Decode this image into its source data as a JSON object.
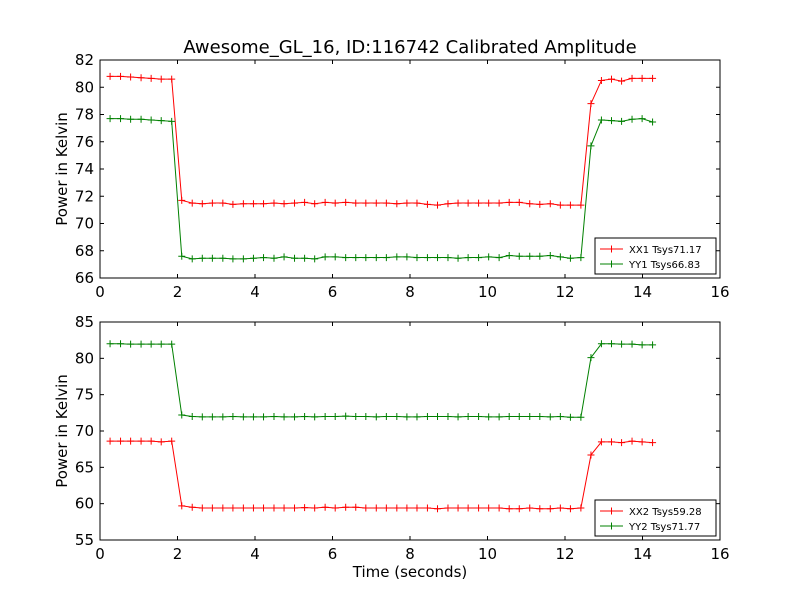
{
  "figure_title": "Awesome_GL_16, ID:116742 Calibrated Amplitude",
  "colors": {
    "xx": "#ff0000",
    "yy": "#008000",
    "frame": "#000000",
    "background": "#ffffff"
  },
  "chart_data": [
    {
      "type": "line",
      "title": "Awesome_GL_16, ID:116742 Calibrated Amplitude",
      "xlabel": "",
      "ylabel": "Power in Kelvin",
      "xlim": [
        0,
        16
      ],
      "ylim": [
        66,
        82
      ],
      "xticks": [
        0,
        2,
        4,
        6,
        8,
        10,
        12,
        14,
        16
      ],
      "yticks": [
        66,
        68,
        70,
        72,
        74,
        76,
        78,
        80,
        82
      ],
      "grid": false,
      "legend_position": "lower-right",
      "marker": "+",
      "x": [
        0.26,
        0.53,
        0.79,
        1.06,
        1.32,
        1.58,
        1.85,
        2.11,
        2.38,
        2.64,
        2.9,
        3.17,
        3.43,
        3.7,
        3.96,
        4.22,
        4.49,
        4.75,
        5.02,
        5.28,
        5.54,
        5.81,
        6.07,
        6.34,
        6.6,
        6.86,
        7.13,
        7.39,
        7.66,
        7.92,
        8.18,
        8.45,
        8.71,
        8.98,
        9.24,
        9.5,
        9.77,
        10.03,
        10.3,
        10.56,
        10.82,
        11.09,
        11.35,
        11.62,
        11.88,
        12.14,
        12.41,
        12.67,
        12.94,
        13.2,
        13.46,
        13.73,
        13.99,
        14.26
      ],
      "series": [
        {
          "name": "XX1 Tsys71.17",
          "color": "#ff0000",
          "values": [
            80.8,
            80.8,
            80.75,
            80.7,
            80.65,
            80.6,
            80.6,
            71.7,
            71.5,
            71.45,
            71.5,
            71.5,
            71.4,
            71.45,
            71.45,
            71.45,
            71.5,
            71.45,
            71.5,
            71.55,
            71.45,
            71.55,
            71.5,
            71.55,
            71.5,
            71.5,
            71.5,
            71.5,
            71.45,
            71.5,
            71.5,
            71.4,
            71.35,
            71.45,
            71.5,
            71.5,
            71.5,
            71.5,
            71.5,
            71.55,
            71.55,
            71.45,
            71.4,
            71.45,
            71.35,
            71.35,
            71.35,
            78.8,
            80.5,
            80.6,
            80.45,
            80.65,
            80.65,
            80.65
          ]
        },
        {
          "name": "YY1 Tsys66.83",
          "color": "#008000",
          "values": [
            77.7,
            77.7,
            77.65,
            77.65,
            77.6,
            77.55,
            77.5,
            67.6,
            67.4,
            67.45,
            67.45,
            67.45,
            67.4,
            67.4,
            67.45,
            67.5,
            67.45,
            67.55,
            67.45,
            67.45,
            67.4,
            67.55,
            67.55,
            67.5,
            67.5,
            67.5,
            67.5,
            67.5,
            67.55,
            67.55,
            67.5,
            67.5,
            67.5,
            67.5,
            67.45,
            67.5,
            67.5,
            67.55,
            67.5,
            67.65,
            67.6,
            67.6,
            67.6,
            67.65,
            67.55,
            67.45,
            67.5,
            75.7,
            77.6,
            77.55,
            77.5,
            77.65,
            77.7,
            77.45
          ]
        }
      ]
    },
    {
      "type": "line",
      "title": "",
      "xlabel": "Time (seconds)",
      "ylabel": "Power in Kelvin",
      "xlim": [
        0,
        16
      ],
      "ylim": [
        55,
        85
      ],
      "xticks": [
        0,
        2,
        4,
        6,
        8,
        10,
        12,
        14,
        16
      ],
      "yticks": [
        55,
        60,
        65,
        70,
        75,
        80,
        85
      ],
      "grid": false,
      "legend_position": "lower-right",
      "marker": "+",
      "x": [
        0.26,
        0.53,
        0.79,
        1.06,
        1.32,
        1.58,
        1.85,
        2.11,
        2.38,
        2.64,
        2.9,
        3.17,
        3.43,
        3.7,
        3.96,
        4.22,
        4.49,
        4.75,
        5.02,
        5.28,
        5.54,
        5.81,
        6.07,
        6.34,
        6.6,
        6.86,
        7.13,
        7.39,
        7.66,
        7.92,
        8.18,
        8.45,
        8.71,
        8.98,
        9.24,
        9.5,
        9.77,
        10.03,
        10.3,
        10.56,
        10.82,
        11.09,
        11.35,
        11.62,
        11.88,
        12.14,
        12.41,
        12.67,
        12.94,
        13.2,
        13.46,
        13.73,
        13.99,
        14.26
      ],
      "series": [
        {
          "name": "XX2 Tsys59.28",
          "color": "#ff0000",
          "values": [
            68.6,
            68.6,
            68.6,
            68.6,
            68.6,
            68.5,
            68.6,
            59.7,
            59.5,
            59.4,
            59.4,
            59.4,
            59.4,
            59.4,
            59.4,
            59.4,
            59.4,
            59.4,
            59.4,
            59.45,
            59.4,
            59.5,
            59.4,
            59.5,
            59.5,
            59.4,
            59.4,
            59.4,
            59.4,
            59.4,
            59.4,
            59.4,
            59.3,
            59.4,
            59.4,
            59.4,
            59.4,
            59.4,
            59.4,
            59.3,
            59.3,
            59.4,
            59.3,
            59.3,
            59.4,
            59.3,
            59.4,
            66.7,
            68.5,
            68.5,
            68.4,
            68.6,
            68.5,
            68.4
          ]
        },
        {
          "name": "YY2 Tsys71.77",
          "color": "#008000",
          "values": [
            82.0,
            82.0,
            81.95,
            81.95,
            81.95,
            81.95,
            81.95,
            72.2,
            72.0,
            71.95,
            71.95,
            71.95,
            72.0,
            71.95,
            71.95,
            71.95,
            72.0,
            71.95,
            71.95,
            72.0,
            71.95,
            72.0,
            72.0,
            72.05,
            72.0,
            72.0,
            71.95,
            72.0,
            72.0,
            71.95,
            71.95,
            72.0,
            72.0,
            72.0,
            71.95,
            72.0,
            72.0,
            71.95,
            71.95,
            72.0,
            72.0,
            72.0,
            72.0,
            71.95,
            72.0,
            71.9,
            71.9,
            80.1,
            82.0,
            82.0,
            81.95,
            81.95,
            81.85,
            81.85
          ]
        }
      ]
    }
  ]
}
